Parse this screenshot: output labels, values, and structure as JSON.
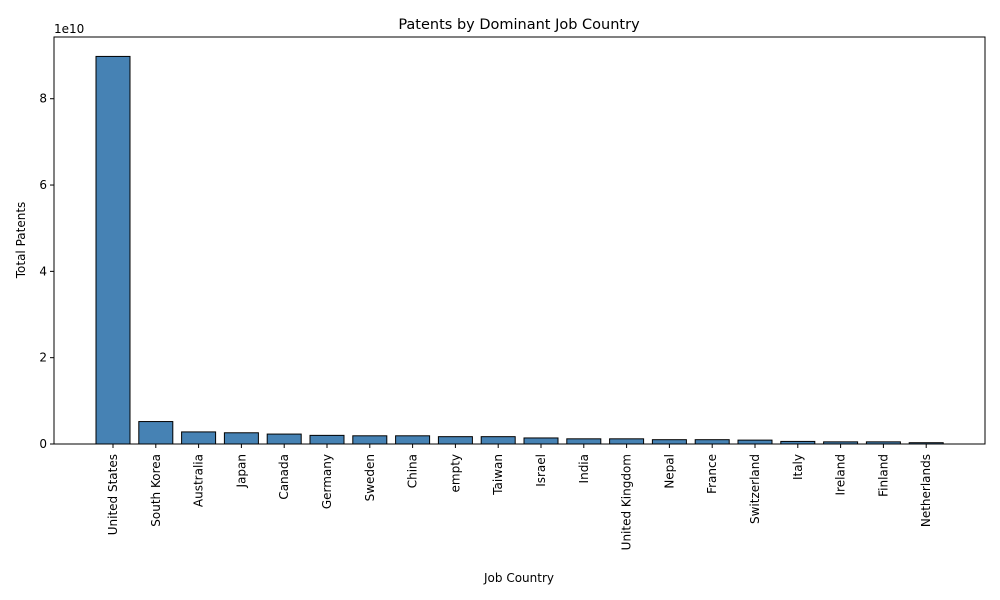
{
  "chart_data": {
    "type": "bar",
    "title": "Patents by Dominant Job Country",
    "xlabel": "Job Country",
    "ylabel": "Total Patents",
    "offset_text": "1e10",
    "categories": [
      "United States",
      "South Korea",
      "Australia",
      "Japan",
      "Canada",
      "Germany",
      "Sweden",
      "China",
      "empty",
      "Taiwan",
      "Israel",
      "India",
      "United Kingdom",
      "Nepal",
      "France",
      "Switzerland",
      "Italy",
      "Ireland",
      "Finland",
      "Netherlands"
    ],
    "values": [
      89800000000,
      5200000000,
      2800000000,
      2600000000,
      2300000000,
      2000000000,
      1900000000,
      1900000000,
      1700000000,
      1700000000,
      1400000000,
      1200000000,
      1200000000,
      1000000000,
      1000000000,
      900000000,
      600000000,
      500000000,
      500000000,
      300000000
    ],
    "yticks": [
      0,
      20000000000,
      40000000000,
      60000000000,
      80000000000
    ],
    "ytick_labels": [
      "0",
      "2",
      "4",
      "6",
      "8"
    ],
    "ylim": [
      0,
      94300000000
    ],
    "grid": false,
    "bar_color": "#4682b4",
    "edge_color": "#000000"
  }
}
